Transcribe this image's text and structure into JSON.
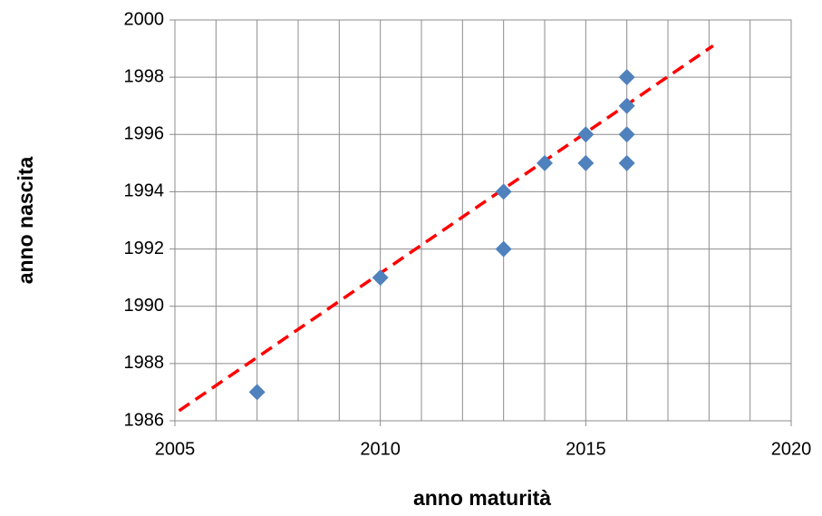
{
  "chart_data": {
    "type": "scatter",
    "xlabel": "anno maturità",
    "ylabel": "anno nascita",
    "series": [
      {
        "color": "#4f81bd",
        "x": [
          2007,
          2010,
          2013,
          2013,
          2014,
          2015,
          2015,
          2016,
          2016,
          2016,
          2016
        ],
        "values": [
          1987,
          1991,
          1994,
          1992,
          1995,
          1996,
          1995,
          1998,
          1997,
          1996,
          1995
        ]
      }
    ],
    "trendline": {
      "color": "#ff0000",
      "dashed": true,
      "x": [
        2005.1,
        2018.1
      ],
      "values": [
        1986.35,
        1999.1
      ]
    },
    "xlim": [
      2005,
      2020
    ],
    "xticks": [
      2005,
      2010,
      2015,
      2020
    ],
    "xgrid": [
      2005,
      2006,
      2007,
      2008,
      2009,
      2010,
      2011,
      2012,
      2013,
      2014,
      2015,
      2016,
      2017,
      2018,
      2019,
      2020
    ],
    "ylim": [
      1986,
      2000
    ],
    "yticks": [
      1986,
      1988,
      1990,
      1992,
      1994,
      1996,
      1998,
      2000
    ],
    "grid": true
  }
}
